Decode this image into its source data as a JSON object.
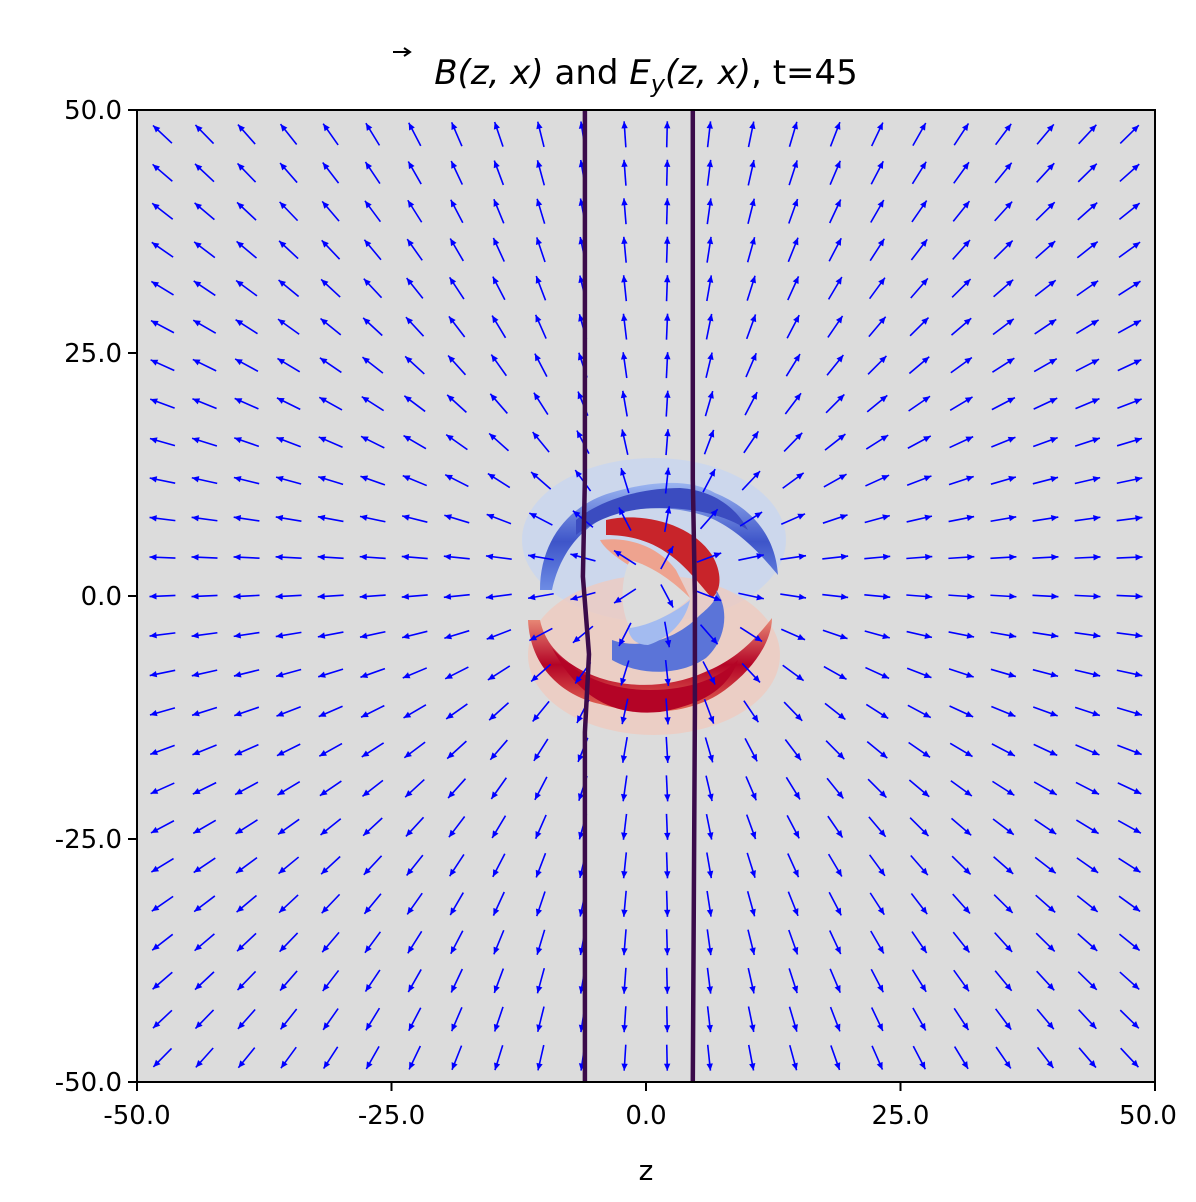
{
  "chart_data": {
    "type": "quiver",
    "title": {
      "b": "B",
      "args_b": "(z, x)",
      "and": " and ",
      "e": "E",
      "e_sub": "y",
      "args_e": "(z, x)",
      "time": ", t=45"
    },
    "xlabel": "z",
    "ylabel": "",
    "xlim": [
      -50,
      50
    ],
    "ylim": [
      -50,
      50
    ],
    "xticks": [
      "-50.0",
      "-25.0",
      "0.0",
      "25.0",
      "50.0"
    ],
    "yticks": [
      "50.0",
      "25.0",
      "0.0",
      "-25.0",
      "-50.0"
    ],
    "background_color": "#dcdcdc",
    "arrow_color": "#0000ff",
    "boundary_color": "#3b0b4a",
    "grid": false,
    "quiver": {
      "description": "magnetic field vectors radiating outward from a source near (z=1, x=2)",
      "z_range": [
        -47.5,
        47.5
      ],
      "x_range": [
        -47.5,
        47.5
      ],
      "nz": 24,
      "nx": 25,
      "center": [
        1,
        2
      ]
    },
    "boundary_lines": [
      {
        "z": [
          -6.0,
          -6.0,
          -6.2,
          -5.6,
          -6.0,
          -6.0
        ],
        "x": [
          50,
          12,
          2,
          -6,
          -14,
          -50
        ]
      },
      {
        "z": [
          4.6,
          4.6,
          4.8,
          4.8,
          4.6
        ],
        "x": [
          50,
          12,
          0,
          -12,
          -50
        ]
      }
    ],
    "ey_field": {
      "blue_lobe": {
        "z": [
          -12,
          -6,
          2,
          7,
          12,
          10,
          4,
          -2,
          -8,
          -12
        ],
        "x": [
          5,
          9,
          12,
          11,
          7,
          1,
          6,
          8,
          5,
          5
        ]
      },
      "red_lobe": {
        "z": [
          -12,
          -6,
          2,
          7,
          12,
          10,
          4,
          -2,
          -8,
          -12
        ],
        "x": [
          -4,
          -9,
          -12,
          -10,
          -6,
          -2,
          -7,
          -8,
          -5,
          -4
        ]
      },
      "inner_red_arc": {
        "z": [
          -2,
          4,
          8,
          6,
          2,
          -1
        ],
        "x": [
          6,
          5,
          1,
          -1,
          3,
          5
        ]
      },
      "inner_blue_arc": {
        "z": [
          -2,
          4,
          8,
          6,
          2,
          -1
        ],
        "x": [
          -1,
          -2,
          -5,
          -7,
          -4,
          -2
        ]
      }
    }
  }
}
